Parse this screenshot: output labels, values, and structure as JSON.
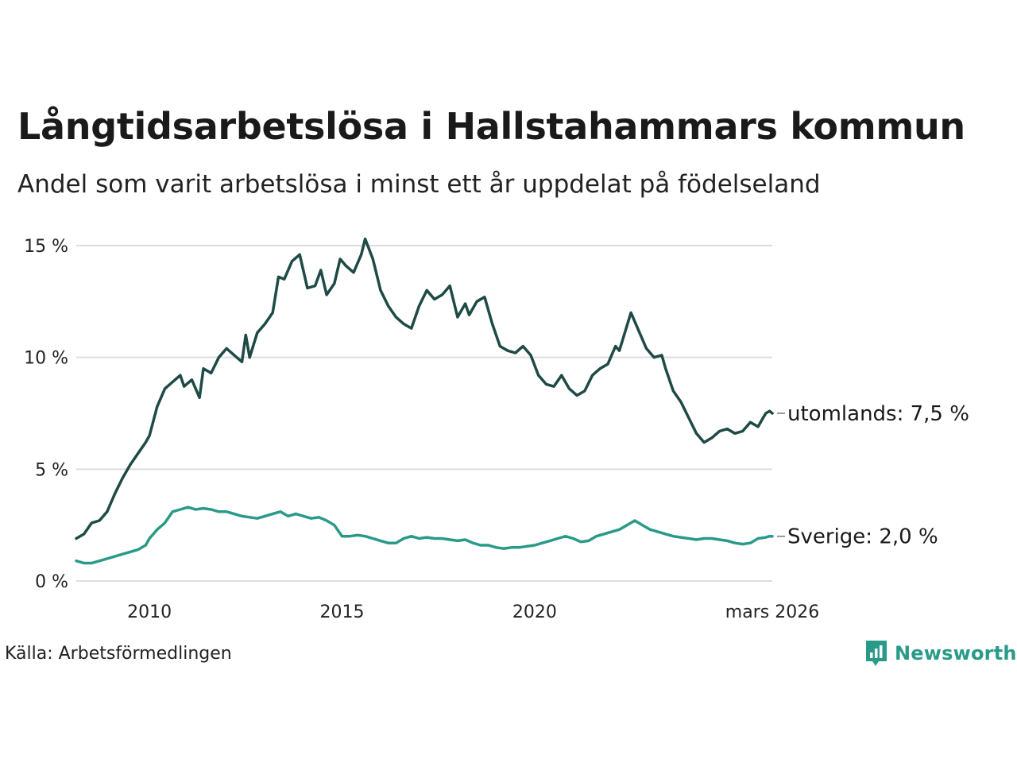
{
  "title": "Långtidsarbetslösa i Hallstahammars kommun",
  "subtitle": "Andel som varit arbetslösa i minst ett år uppdelat på födelseland",
  "source": "Källa: Arbetsförmedlingen",
  "brand": {
    "name": "Newsworthy",
    "icon": "newsworthy-logo-icon",
    "color": "#2a9a88"
  },
  "chart_data": {
    "type": "line",
    "title": "Långtidsarbetslösa i Hallstahammars kommun",
    "subtitle": "Andel som varit arbetslösa i minst ett år uppdelat på födelseland",
    "xlabel": "",
    "ylabel": "",
    "ylim": [
      0,
      15
    ],
    "xlim": [
      2008.1,
      2026.17
    ],
    "grid": true,
    "y_ticks": [
      0,
      5,
      10,
      15
    ],
    "y_tick_labels": [
      "0 %",
      "5 %",
      "10 %",
      "15 %"
    ],
    "x_ticks": [
      2010,
      2015,
      2020,
      2026.17
    ],
    "x_tick_labels": [
      "2010",
      "2015",
      "2020",
      "mars 2026"
    ],
    "series": [
      {
        "name": "utomlands",
        "end_label": "utomlands: 7,5 %",
        "color": "#1f4a45",
        "points": [
          [
            2008.1,
            1.9
          ],
          [
            2008.3,
            2.1
          ],
          [
            2008.5,
            2.6
          ],
          [
            2008.7,
            2.7
          ],
          [
            2008.9,
            3.1
          ],
          [
            2009.1,
            3.9
          ],
          [
            2009.3,
            4.6
          ],
          [
            2009.5,
            5.2
          ],
          [
            2009.7,
            5.7
          ],
          [
            2009.9,
            6.2
          ],
          [
            2010.0,
            6.5
          ],
          [
            2010.2,
            7.8
          ],
          [
            2010.4,
            8.6
          ],
          [
            2010.6,
            8.9
          ],
          [
            2010.8,
            9.2
          ],
          [
            2010.9,
            8.7
          ],
          [
            2011.1,
            9.0
          ],
          [
            2011.3,
            8.2
          ],
          [
            2011.4,
            9.5
          ],
          [
            2011.6,
            9.3
          ],
          [
            2011.8,
            10.0
          ],
          [
            2012.0,
            10.4
          ],
          [
            2012.2,
            10.1
          ],
          [
            2012.4,
            9.8
          ],
          [
            2012.5,
            11.0
          ],
          [
            2012.6,
            10.0
          ],
          [
            2012.8,
            11.1
          ],
          [
            2013.0,
            11.5
          ],
          [
            2013.2,
            12.0
          ],
          [
            2013.35,
            13.6
          ],
          [
            2013.5,
            13.5
          ],
          [
            2013.7,
            14.3
          ],
          [
            2013.9,
            14.6
          ],
          [
            2014.1,
            13.1
          ],
          [
            2014.3,
            13.2
          ],
          [
            2014.45,
            13.9
          ],
          [
            2014.6,
            12.8
          ],
          [
            2014.8,
            13.3
          ],
          [
            2014.95,
            14.4
          ],
          [
            2015.1,
            14.1
          ],
          [
            2015.3,
            13.8
          ],
          [
            2015.5,
            14.6
          ],
          [
            2015.6,
            15.3
          ],
          [
            2015.8,
            14.4
          ],
          [
            2016.0,
            13.0
          ],
          [
            2016.2,
            12.3
          ],
          [
            2016.4,
            11.8
          ],
          [
            2016.6,
            11.5
          ],
          [
            2016.8,
            11.3
          ],
          [
            2017.0,
            12.3
          ],
          [
            2017.2,
            13.0
          ],
          [
            2017.4,
            12.6
          ],
          [
            2017.6,
            12.8
          ],
          [
            2017.8,
            13.2
          ],
          [
            2018.0,
            11.8
          ],
          [
            2018.2,
            12.4
          ],
          [
            2018.3,
            11.9
          ],
          [
            2018.5,
            12.5
          ],
          [
            2018.7,
            12.7
          ],
          [
            2018.9,
            11.5
          ],
          [
            2019.1,
            10.5
          ],
          [
            2019.3,
            10.3
          ],
          [
            2019.5,
            10.2
          ],
          [
            2019.7,
            10.5
          ],
          [
            2019.9,
            10.1
          ],
          [
            2020.1,
            9.2
          ],
          [
            2020.3,
            8.8
          ],
          [
            2020.5,
            8.7
          ],
          [
            2020.7,
            9.2
          ],
          [
            2020.9,
            8.6
          ],
          [
            2021.1,
            8.3
          ],
          [
            2021.3,
            8.5
          ],
          [
            2021.5,
            9.2
          ],
          [
            2021.7,
            9.5
          ],
          [
            2021.9,
            9.7
          ],
          [
            2022.1,
            10.5
          ],
          [
            2022.2,
            10.3
          ],
          [
            2022.5,
            12.0
          ],
          [
            2022.7,
            11.2
          ],
          [
            2022.9,
            10.4
          ],
          [
            2023.1,
            10.0
          ],
          [
            2023.3,
            10.1
          ],
          [
            2023.4,
            9.5
          ],
          [
            2023.6,
            8.5
          ],
          [
            2023.8,
            8.0
          ],
          [
            2024.0,
            7.3
          ],
          [
            2024.2,
            6.6
          ],
          [
            2024.4,
            6.2
          ],
          [
            2024.6,
            6.4
          ],
          [
            2024.8,
            6.7
          ],
          [
            2025.0,
            6.8
          ],
          [
            2025.2,
            6.6
          ],
          [
            2025.4,
            6.7
          ],
          [
            2025.6,
            7.1
          ],
          [
            2025.8,
            6.9
          ],
          [
            2025.9,
            7.2
          ],
          [
            2026.0,
            7.5
          ],
          [
            2026.1,
            7.6
          ],
          [
            2026.17,
            7.5
          ]
        ]
      },
      {
        "name": "Sverige",
        "end_label": "Sverige: 2,0 %",
        "color": "#2a9a88",
        "points": [
          [
            2008.1,
            0.9
          ],
          [
            2008.3,
            0.8
          ],
          [
            2008.5,
            0.8
          ],
          [
            2008.7,
            0.9
          ],
          [
            2008.9,
            1.0
          ],
          [
            2009.1,
            1.1
          ],
          [
            2009.3,
            1.2
          ],
          [
            2009.5,
            1.3
          ],
          [
            2009.7,
            1.4
          ],
          [
            2009.9,
            1.6
          ],
          [
            2010.0,
            1.9
          ],
          [
            2010.2,
            2.3
          ],
          [
            2010.4,
            2.6
          ],
          [
            2010.6,
            3.1
          ],
          [
            2010.8,
            3.2
          ],
          [
            2011.0,
            3.3
          ],
          [
            2011.2,
            3.2
          ],
          [
            2011.4,
            3.25
          ],
          [
            2011.6,
            3.2
          ],
          [
            2011.8,
            3.1
          ],
          [
            2012.0,
            3.1
          ],
          [
            2012.2,
            3.0
          ],
          [
            2012.4,
            2.9
          ],
          [
            2012.6,
            2.85
          ],
          [
            2012.8,
            2.8
          ],
          [
            2013.0,
            2.9
          ],
          [
            2013.2,
            3.0
          ],
          [
            2013.4,
            3.1
          ],
          [
            2013.6,
            2.9
          ],
          [
            2013.8,
            3.0
          ],
          [
            2014.0,
            2.9
          ],
          [
            2014.2,
            2.8
          ],
          [
            2014.4,
            2.85
          ],
          [
            2014.6,
            2.7
          ],
          [
            2014.8,
            2.5
          ],
          [
            2015.0,
            2.0
          ],
          [
            2015.2,
            2.0
          ],
          [
            2015.4,
            2.05
          ],
          [
            2015.6,
            2.0
          ],
          [
            2015.8,
            1.9
          ],
          [
            2016.0,
            1.8
          ],
          [
            2016.2,
            1.7
          ],
          [
            2016.4,
            1.7
          ],
          [
            2016.6,
            1.9
          ],
          [
            2016.8,
            2.0
          ],
          [
            2017.0,
            1.9
          ],
          [
            2017.2,
            1.95
          ],
          [
            2017.4,
            1.9
          ],
          [
            2017.6,
            1.9
          ],
          [
            2017.8,
            1.85
          ],
          [
            2018.0,
            1.8
          ],
          [
            2018.2,
            1.85
          ],
          [
            2018.4,
            1.7
          ],
          [
            2018.6,
            1.6
          ],
          [
            2018.8,
            1.6
          ],
          [
            2019.0,
            1.5
          ],
          [
            2019.2,
            1.45
          ],
          [
            2019.4,
            1.5
          ],
          [
            2019.6,
            1.5
          ],
          [
            2019.8,
            1.55
          ],
          [
            2020.0,
            1.6
          ],
          [
            2020.2,
            1.7
          ],
          [
            2020.4,
            1.8
          ],
          [
            2020.6,
            1.9
          ],
          [
            2020.8,
            2.0
          ],
          [
            2021.0,
            1.9
          ],
          [
            2021.2,
            1.75
          ],
          [
            2021.4,
            1.8
          ],
          [
            2021.6,
            2.0
          ],
          [
            2021.8,
            2.1
          ],
          [
            2022.0,
            2.2
          ],
          [
            2022.2,
            2.3
          ],
          [
            2022.4,
            2.5
          ],
          [
            2022.6,
            2.7
          ],
          [
            2022.8,
            2.5
          ],
          [
            2023.0,
            2.3
          ],
          [
            2023.2,
            2.2
          ],
          [
            2023.4,
            2.1
          ],
          [
            2023.6,
            2.0
          ],
          [
            2023.8,
            1.95
          ],
          [
            2024.0,
            1.9
          ],
          [
            2024.2,
            1.85
          ],
          [
            2024.4,
            1.9
          ],
          [
            2024.6,
            1.9
          ],
          [
            2024.8,
            1.85
          ],
          [
            2025.0,
            1.8
          ],
          [
            2025.2,
            1.7
          ],
          [
            2025.4,
            1.65
          ],
          [
            2025.6,
            1.7
          ],
          [
            2025.8,
            1.9
          ],
          [
            2026.0,
            1.95
          ],
          [
            2026.1,
            2.0
          ],
          [
            2026.17,
            2.0
          ]
        ]
      }
    ]
  }
}
